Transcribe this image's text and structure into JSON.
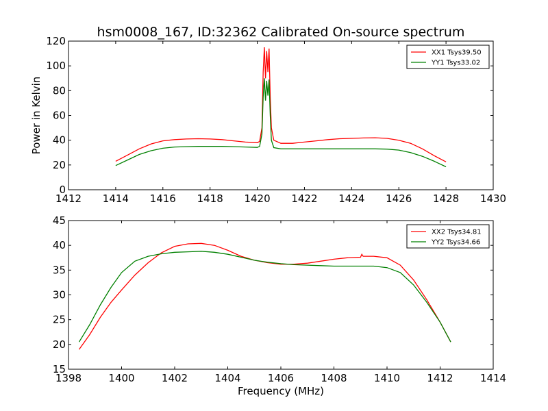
{
  "figure": {
    "title": "hsm0008_167, ID:32362 Calibrated On-source spectrum",
    "shared_xlabel": "Frequency (MHz)"
  },
  "chart_data": [
    {
      "type": "line",
      "title": "hsm0008_167, ID:32362 Calibrated On-source spectrum",
      "xlabel": "",
      "ylabel": "Power in Kelvin",
      "xlim": [
        1412,
        1430
      ],
      "ylim": [
        0,
        120
      ],
      "xticks": [
        1412,
        1414,
        1416,
        1418,
        1420,
        1422,
        1424,
        1426,
        1428,
        1430
      ],
      "yticks": [
        0,
        20,
        40,
        60,
        80,
        100,
        120
      ],
      "grid": false,
      "legend": "top-right",
      "series": [
        {
          "name": "XX1 Tsys39.50",
          "color": "#ff0000",
          "x": [
            1414.0,
            1414.5,
            1415.0,
            1415.5,
            1416.0,
            1416.5,
            1417.0,
            1417.5,
            1418.0,
            1418.5,
            1419.0,
            1419.5,
            1420.0,
            1420.1,
            1420.2,
            1420.25,
            1420.3,
            1420.35,
            1420.4,
            1420.45,
            1420.5,
            1420.55,
            1420.6,
            1420.7,
            1421.0,
            1421.5,
            1422.0,
            1422.5,
            1423.0,
            1423.5,
            1424.0,
            1424.5,
            1425.0,
            1425.5,
            1426.0,
            1426.5,
            1427.0,
            1427.5,
            1428.0
          ],
          "y": [
            23,
            28,
            33,
            37,
            39.5,
            40.5,
            41,
            41.2,
            41,
            40.5,
            39.5,
            38.5,
            38,
            39,
            50,
            95,
            115,
            90,
            112,
            95,
            114,
            75,
            50,
            40,
            37.5,
            37.5,
            38.5,
            39.5,
            40.5,
            41.2,
            41.5,
            41.8,
            42,
            41.5,
            40,
            37.5,
            33,
            27.5,
            22.5
          ]
        },
        {
          "name": "YY1 Tsys33.02",
          "color": "#008000",
          "x": [
            1414.0,
            1414.5,
            1415.0,
            1415.5,
            1416.0,
            1416.5,
            1417.0,
            1417.5,
            1418.0,
            1418.5,
            1419.0,
            1419.5,
            1420.0,
            1420.1,
            1420.2,
            1420.25,
            1420.3,
            1420.35,
            1420.4,
            1420.45,
            1420.5,
            1420.55,
            1420.6,
            1420.7,
            1421.0,
            1421.5,
            1422.0,
            1422.5,
            1423.0,
            1423.5,
            1424.0,
            1424.5,
            1425.0,
            1425.5,
            1426.0,
            1426.5,
            1427.0,
            1427.5,
            1428.0
          ],
          "y": [
            19.5,
            24,
            28.5,
            31.5,
            33.5,
            34.5,
            34.8,
            35,
            35,
            35,
            34.8,
            34.5,
            34.2,
            35,
            45,
            75,
            90,
            72,
            88,
            76,
            89,
            60,
            40,
            34,
            33,
            33,
            33,
            33,
            33,
            33,
            33,
            33,
            33,
            32.8,
            32,
            30,
            27,
            23,
            18.5
          ]
        }
      ]
    },
    {
      "type": "line",
      "title": "",
      "xlabel": "Frequency (MHz)",
      "ylabel": "",
      "xlim": [
        1398,
        1414
      ],
      "ylim": [
        15,
        45
      ],
      "xticks": [
        1398,
        1400,
        1402,
        1404,
        1406,
        1408,
        1410,
        1412,
        1414
      ],
      "yticks": [
        15,
        20,
        25,
        30,
        35,
        40,
        45
      ],
      "grid": false,
      "legend": "top-right",
      "series": [
        {
          "name": "XX2 Tsys34.81",
          "color": "#ff0000",
          "x": [
            1398.4,
            1398.8,
            1399.2,
            1399.6,
            1400.0,
            1400.5,
            1401.0,
            1401.5,
            1402.0,
            1402.5,
            1403.0,
            1403.5,
            1404.0,
            1404.5,
            1405.0,
            1405.5,
            1406.0,
            1406.5,
            1407.0,
            1407.5,
            1408.0,
            1408.5,
            1409.0,
            1409.05,
            1409.1,
            1409.5,
            1410.0,
            1410.5,
            1411.0,
            1411.5,
            1412.0,
            1412.4
          ],
          "y": [
            19,
            22,
            25.5,
            28.5,
            31,
            34,
            36.5,
            38.5,
            39.8,
            40.3,
            40.4,
            40,
            39,
            37.8,
            37,
            36.5,
            36.2,
            36.2,
            36.4,
            36.8,
            37.2,
            37.5,
            37.6,
            38.2,
            37.8,
            37.8,
            37.5,
            36,
            33,
            29,
            24.5,
            20.5
          ]
        },
        {
          "name": "YY2 Tsys34.66",
          "color": "#008000",
          "x": [
            1398.4,
            1398.8,
            1399.2,
            1399.6,
            1400.0,
            1400.5,
            1401.0,
            1401.5,
            1402.0,
            1402.5,
            1403.0,
            1403.5,
            1404.0,
            1404.5,
            1405.0,
            1405.5,
            1406.0,
            1406.5,
            1407.0,
            1407.5,
            1408.0,
            1408.5,
            1409.0,
            1409.5,
            1410.0,
            1410.5,
            1411.0,
            1411.5,
            1412.0,
            1412.4
          ],
          "y": [
            20.5,
            24,
            28,
            31.5,
            34.5,
            36.8,
            37.8,
            38.3,
            38.6,
            38.7,
            38.8,
            38.6,
            38.2,
            37.6,
            37,
            36.6,
            36.3,
            36.1,
            36,
            35.9,
            35.8,
            35.8,
            35.8,
            35.8,
            35.5,
            34.5,
            32,
            28.5,
            24.5,
            20.5
          ]
        }
      ]
    }
  ]
}
